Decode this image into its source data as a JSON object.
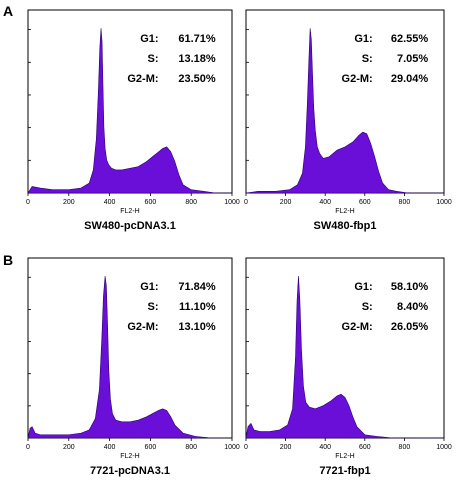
{
  "panel_letters": {
    "top": "A",
    "bottom": "B"
  },
  "chart_data": [
    {
      "type": "area",
      "caption": "SW480-pcDNA3.1",
      "xlabel": "FL2-H",
      "xlim": [
        0,
        1000
      ],
      "xticks": [
        "0",
        "200",
        "400",
        "600",
        "800",
        "1000"
      ],
      "stats": [
        {
          "label": "G1:",
          "value": "61.71%"
        },
        {
          "label": "S:",
          "value": "13.18%"
        },
        {
          "label": "G2-M:",
          "value": "23.50%"
        }
      ],
      "fill_color": "#6a0fd8",
      "x": [
        0,
        20,
        60,
        120,
        200,
        260,
        300,
        320,
        335,
        345,
        352,
        358,
        363,
        368,
        372,
        378,
        386,
        396,
        410,
        430,
        460,
        500,
        540,
        580,
        610,
        640,
        660,
        680,
        700,
        720,
        740,
        760,
        800,
        860,
        920,
        1000
      ],
      "y": [
        0.0,
        0.04,
        0.03,
        0.02,
        0.02,
        0.03,
        0.06,
        0.14,
        0.33,
        0.62,
        0.88,
        1.0,
        0.92,
        0.62,
        0.4,
        0.27,
        0.2,
        0.17,
        0.15,
        0.14,
        0.14,
        0.15,
        0.16,
        0.19,
        0.22,
        0.25,
        0.27,
        0.28,
        0.25,
        0.19,
        0.11,
        0.05,
        0.02,
        0.01,
        0.0,
        0.0
      ]
    },
    {
      "type": "area",
      "caption": "SW480-fbp1",
      "xlabel": "FL2-H",
      "xlim": [
        0,
        1000
      ],
      "xticks": [
        "0",
        "200",
        "400",
        "600",
        "800",
        "1000"
      ],
      "stats": [
        {
          "label": "G1:",
          "value": "62.55%"
        },
        {
          "label": "S:",
          "value": "7.05%"
        },
        {
          "label": "G2-M:",
          "value": "29.04%"
        }
      ],
      "fill_color": "#6a0fd8",
      "x": [
        0,
        60,
        150,
        220,
        260,
        285,
        300,
        310,
        318,
        324,
        330,
        336,
        342,
        350,
        360,
        372,
        390,
        420,
        460,
        500,
        540,
        570,
        590,
        610,
        630,
        650,
        670,
        690,
        720,
        760,
        820,
        900,
        1000
      ],
      "y": [
        0.0,
        0.01,
        0.01,
        0.02,
        0.05,
        0.12,
        0.28,
        0.55,
        0.82,
        1.0,
        0.93,
        0.72,
        0.52,
        0.38,
        0.28,
        0.24,
        0.21,
        0.22,
        0.26,
        0.28,
        0.31,
        0.35,
        0.37,
        0.36,
        0.3,
        0.22,
        0.13,
        0.06,
        0.02,
        0.01,
        0.0,
        0.0,
        0.0
      ]
    },
    {
      "type": "area",
      "caption": "7721-pcDNA3.1",
      "xlabel": "FL2-H",
      "xlim": [
        0,
        1000
      ],
      "xticks": [
        "0",
        "200",
        "400",
        "600",
        "800",
        "1000"
      ],
      "stats": [
        {
          "label": "G1:",
          "value": "71.84%"
        },
        {
          "label": "S:",
          "value": "11.10%"
        },
        {
          "label": "G2-M:",
          "value": "13.10%"
        }
      ],
      "fill_color": "#6a0fd8",
      "x": [
        0,
        10,
        20,
        35,
        60,
        120,
        200,
        260,
        300,
        330,
        350,
        362,
        370,
        378,
        384,
        390,
        396,
        404,
        414,
        430,
        460,
        500,
        540,
        580,
        610,
        640,
        660,
        680,
        700,
        720,
        760,
        820,
        900,
        1000
      ],
      "y": [
        0.0,
        0.06,
        0.07,
        0.03,
        0.02,
        0.02,
        0.02,
        0.03,
        0.05,
        0.12,
        0.3,
        0.62,
        0.88,
        1.0,
        0.94,
        0.7,
        0.42,
        0.24,
        0.15,
        0.11,
        0.1,
        0.1,
        0.11,
        0.13,
        0.15,
        0.17,
        0.18,
        0.17,
        0.13,
        0.08,
        0.03,
        0.01,
        0.0,
        0.0
      ]
    },
    {
      "type": "area",
      "caption": "7721-fbp1",
      "xlabel": "FL2-H",
      "xlim": [
        0,
        1000
      ],
      "xticks": [
        "0",
        "200",
        "400",
        "600",
        "800",
        "1000"
      ],
      "stats": [
        {
          "label": "G1:",
          "value": "58.10%"
        },
        {
          "label": "S:",
          "value": "8.40%"
        },
        {
          "label": "G2-M:",
          "value": "26.05%"
        }
      ],
      "fill_color": "#6a0fd8",
      "x": [
        0,
        10,
        25,
        40,
        70,
        120,
        170,
        210,
        235,
        250,
        258,
        265,
        272,
        280,
        290,
        302,
        320,
        350,
        390,
        430,
        460,
        480,
        500,
        520,
        540,
        560,
        600,
        660,
        740,
        850,
        1000
      ],
      "y": [
        0.0,
        0.07,
        0.09,
        0.05,
        0.04,
        0.04,
        0.05,
        0.08,
        0.18,
        0.5,
        0.85,
        1.0,
        0.85,
        0.55,
        0.32,
        0.22,
        0.19,
        0.18,
        0.2,
        0.23,
        0.26,
        0.27,
        0.25,
        0.2,
        0.13,
        0.07,
        0.02,
        0.01,
        0.0,
        0.0,
        0.0
      ]
    }
  ]
}
